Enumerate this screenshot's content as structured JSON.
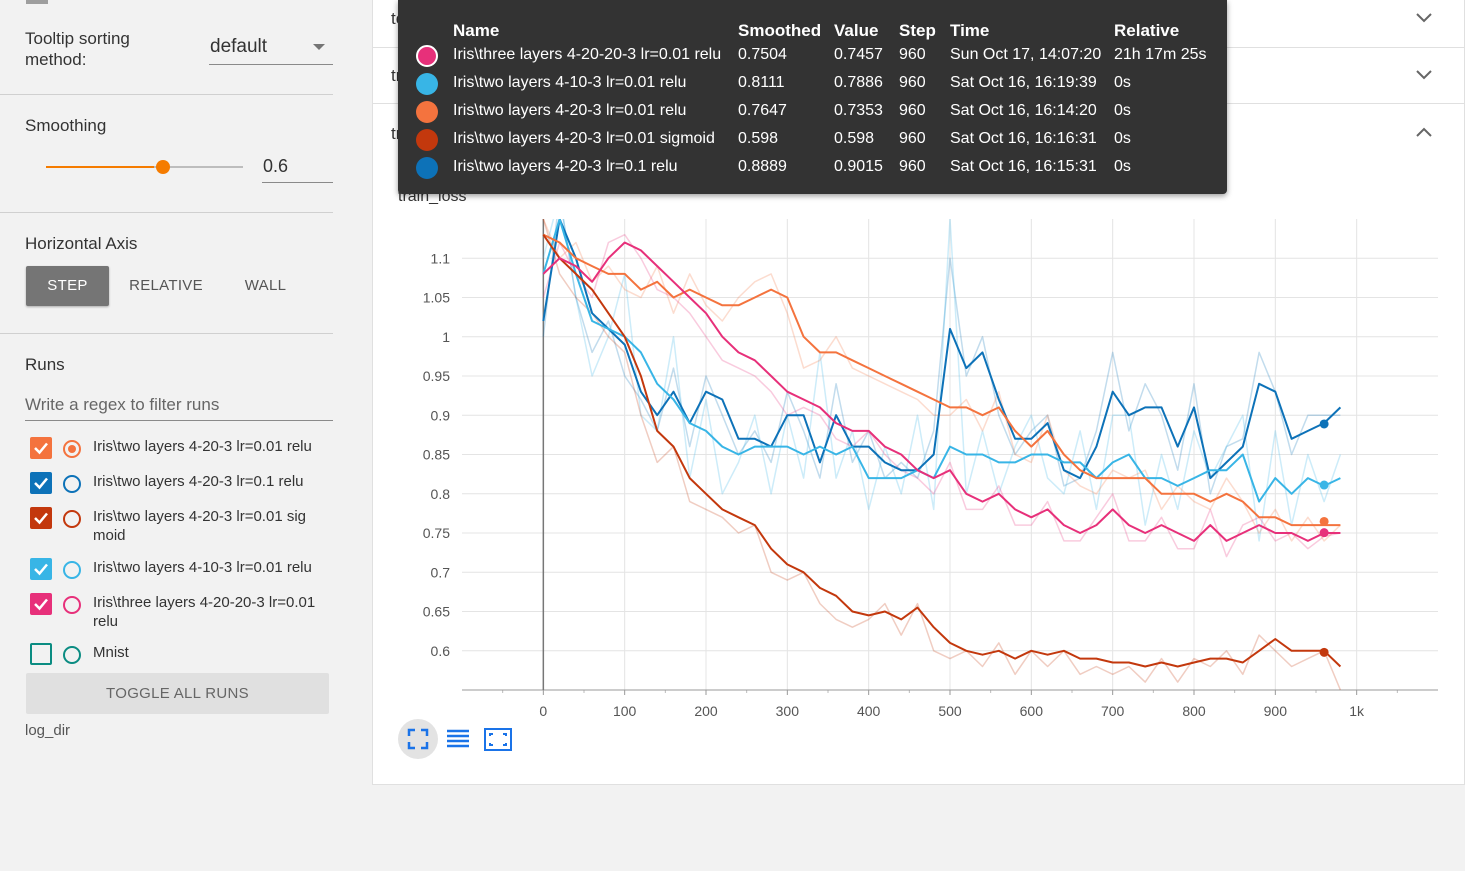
{
  "sidebar": {
    "tooltip_sorting_label": "Tooltip sorting method:",
    "tooltip_sorting_value": "default",
    "smoothing_label": "Smoothing",
    "smoothing_value": "0.6",
    "smoothing_fraction": 0.6,
    "horizontal_axis_label": "Horizontal Axis",
    "axis_options": [
      "STEP",
      "RELATIVE",
      "WALL"
    ],
    "axis_selected": "STEP",
    "runs_label": "Runs",
    "filter_placeholder": "Write a regex to filter runs",
    "runs": [
      {
        "label": "Iris\\two layers 4-20-3 lr=0.01 relu",
        "color": "#f4733e",
        "checked": true,
        "selected": true
      },
      {
        "label": "Iris\\two layers 4-20-3 lr=0.1 relu",
        "color": "#0d72b8",
        "checked": true,
        "selected": false
      },
      {
        "label": "Iris\\two layers 4-20-3 lr=0.01 sig moid",
        "color": "#c3380d",
        "checked": true,
        "selected": false
      },
      {
        "label": "Iris\\two layers 4-10-3 lr=0.01 relu",
        "color": "#38b5e6",
        "checked": true,
        "selected": false
      },
      {
        "label": "Iris\\three layers 4-20-20-3 lr=0.01 relu",
        "color": "#e7307a",
        "checked": true,
        "selected": false
      },
      {
        "label": "Mnist",
        "color": "#0b8c82",
        "checked": false,
        "selected": false
      }
    ],
    "toggle_all_label": "TOGGLE ALL RUNS",
    "log_dir": "log_dir"
  },
  "cards": {
    "test_accuracy": "test_accuracy",
    "train_accuracy": "train_accuracy",
    "train_loss": "train_loss"
  },
  "tooltip": {
    "headers": {
      "name": "Name",
      "smoothed": "Smoothed",
      "value": "Value",
      "step": "Step",
      "time": "Time",
      "relative": "Relative"
    },
    "rows": [
      {
        "color": "#e7307a",
        "name": "Iris\\three layers 4-20-20-3 lr=0.01 relu",
        "smoothed": "0.7504",
        "value": "0.7457",
        "step": "960",
        "time": "Sun Oct 17, 14:07:20",
        "relative": "21h 17m 25s"
      },
      {
        "color": "#38b5e6",
        "name": "Iris\\two layers 4-10-3 lr=0.01 relu",
        "smoothed": "0.8111",
        "value": "0.7886",
        "step": "960",
        "time": "Sat Oct 16, 16:19:39",
        "relative": "0s"
      },
      {
        "color": "#f4733e",
        "name": "Iris\\two layers 4-20-3 lr=0.01 relu",
        "smoothed": "0.7647",
        "value": "0.7353",
        "step": "960",
        "time": "Sat Oct 16, 16:14:20",
        "relative": "0s"
      },
      {
        "color": "#c3380d",
        "name": "Iris\\two layers 4-20-3 lr=0.01 sigmoid",
        "smoothed": "0.598",
        "value": "0.598",
        "step": "960",
        "time": "Sat Oct 16, 16:16:31",
        "relative": "0s"
      },
      {
        "color": "#0d72b8",
        "name": "Iris\\two layers 4-20-3 lr=0.1 relu",
        "smoothed": "0.8889",
        "value": "0.9015",
        "step": "960",
        "time": "Sat Oct 16, 16:15:31",
        "relative": "0s"
      }
    ]
  },
  "chart_data": {
    "type": "line",
    "title": "train_loss",
    "xlim": [
      -100,
      1100
    ],
    "ylim": [
      0.55,
      1.15
    ],
    "x_ticks": [
      0,
      100,
      200,
      300,
      400,
      500,
      600,
      700,
      800,
      900,
      1000
    ],
    "x_tick_labels": [
      "0",
      "100",
      "200",
      "300",
      "400",
      "500",
      "600",
      "700",
      "800",
      "900",
      "1k"
    ],
    "y_ticks": [
      0.6,
      0.65,
      0.7,
      0.75,
      0.8,
      0.85,
      0.9,
      0.95,
      1,
      1.05,
      1.1
    ],
    "y_tick_labels": [
      "0.6",
      "0.65",
      "0.7",
      "0.75",
      "0.8",
      "0.85",
      "0.9",
      "0.95",
      "1",
      "1.05",
      "1.1"
    ],
    "grid": true,
    "series": [
      {
        "name": "Iris\\two layers 4-20-3 lr=0.1 relu",
        "color": "#0d72b8",
        "x": [
          0,
          20,
          40,
          60,
          80,
          100,
          120,
          140,
          160,
          180,
          200,
          220,
          240,
          260,
          280,
          300,
          320,
          340,
          360,
          380,
          400,
          420,
          440,
          460,
          480,
          500,
          520,
          540,
          560,
          580,
          600,
          620,
          640,
          660,
          680,
          700,
          720,
          740,
          760,
          780,
          800,
          820,
          840,
          860,
          880,
          900,
          920,
          940,
          960,
          980
        ],
        "y": [
          1.02,
          1.15,
          1.1,
          1.03,
          1.01,
          0.99,
          0.93,
          0.9,
          0.93,
          0.89,
          0.93,
          0.92,
          0.87,
          0.87,
          0.86,
          0.9,
          0.9,
          0.84,
          0.9,
          0.86,
          0.86,
          0.84,
          0.83,
          0.83,
          0.85,
          1.01,
          0.96,
          0.98,
          0.92,
          0.87,
          0.87,
          0.89,
          0.83,
          0.82,
          0.86,
          0.93,
          0.9,
          0.91,
          0.91,
          0.86,
          0.91,
          0.82,
          0.84,
          0.86,
          0.94,
          0.93,
          0.87,
          0.88,
          0.89,
          0.91
        ],
        "raw": [
          1.0,
          1.18,
          1.05,
          0.98,
          1.02,
          0.95,
          0.92,
          0.88,
          0.96,
          0.86,
          0.95,
          0.9,
          0.85,
          0.88,
          0.84,
          0.93,
          0.88,
          0.82,
          0.94,
          0.84,
          0.88,
          0.82,
          0.84,
          0.82,
          0.88,
          1.1,
          0.95,
          1.0,
          0.9,
          0.85,
          0.88,
          0.9,
          0.81,
          0.82,
          0.88,
          0.98,
          0.88,
          0.94,
          0.9,
          0.83,
          0.94,
          0.8,
          0.86,
          0.87,
          0.98,
          0.93,
          0.85,
          0.9,
          0.9,
          0.9
        ]
      },
      {
        "name": "Iris\\two layers 4-10-3 lr=0.01 relu",
        "color": "#38b5e6",
        "x": [
          0,
          20,
          40,
          60,
          80,
          100,
          120,
          140,
          160,
          180,
          200,
          220,
          240,
          260,
          280,
          300,
          320,
          340,
          360,
          380,
          400,
          420,
          440,
          460,
          480,
          500,
          520,
          540,
          560,
          580,
          600,
          620,
          640,
          660,
          680,
          700,
          720,
          740,
          760,
          780,
          800,
          820,
          840,
          860,
          880,
          900,
          920,
          940,
          960,
          980
        ],
        "y": [
          1.08,
          1.15,
          1.08,
          1.02,
          1.01,
          1.0,
          0.98,
          0.94,
          0.92,
          0.89,
          0.88,
          0.86,
          0.85,
          0.86,
          0.86,
          0.86,
          0.85,
          0.86,
          0.85,
          0.86,
          0.82,
          0.82,
          0.82,
          0.83,
          0.82,
          0.86,
          0.85,
          0.85,
          0.84,
          0.84,
          0.85,
          0.85,
          0.84,
          0.84,
          0.82,
          0.84,
          0.85,
          0.82,
          0.82,
          0.81,
          0.82,
          0.83,
          0.83,
          0.85,
          0.79,
          0.82,
          0.8,
          0.82,
          0.81,
          0.82
        ],
        "raw": [
          1.1,
          1.18,
          1.05,
          0.95,
          1.0,
          1.08,
          0.9,
          0.88,
          1.0,
          0.82,
          0.92,
          0.8,
          0.84,
          0.9,
          0.8,
          0.9,
          0.82,
          0.98,
          0.82,
          0.88,
          0.78,
          0.86,
          0.8,
          0.9,
          0.78,
          1.15,
          0.8,
          0.88,
          0.8,
          0.86,
          0.9,
          0.82,
          0.8,
          0.88,
          0.78,
          0.9,
          0.9,
          0.76,
          0.85,
          0.78,
          0.88,
          0.82,
          0.86,
          0.9,
          0.74,
          0.88,
          0.76,
          0.85,
          0.79,
          0.85
        ]
      },
      {
        "name": "Iris\\two layers 4-20-3 lr=0.01 relu",
        "color": "#f4733e",
        "x": [
          0,
          20,
          40,
          60,
          80,
          100,
          120,
          140,
          160,
          180,
          200,
          220,
          240,
          260,
          280,
          300,
          320,
          340,
          360,
          380,
          400,
          420,
          440,
          460,
          480,
          500,
          520,
          540,
          560,
          580,
          600,
          620,
          640,
          660,
          680,
          700,
          720,
          740,
          760,
          780,
          800,
          820,
          840,
          860,
          880,
          900,
          920,
          940,
          960,
          980
        ],
        "y": [
          1.13,
          1.12,
          1.1,
          1.09,
          1.08,
          1.08,
          1.06,
          1.07,
          1.05,
          1.06,
          1.05,
          1.04,
          1.04,
          1.05,
          1.06,
          1.05,
          1.0,
          0.98,
          0.98,
          0.97,
          0.96,
          0.95,
          0.94,
          0.93,
          0.92,
          0.91,
          0.91,
          0.9,
          0.91,
          0.88,
          0.86,
          0.88,
          0.85,
          0.83,
          0.82,
          0.82,
          0.82,
          0.82,
          0.8,
          0.8,
          0.8,
          0.79,
          0.8,
          0.79,
          0.77,
          0.77,
          0.76,
          0.76,
          0.76,
          0.76
        ],
        "raw": [
          1.15,
          1.1,
          1.12,
          1.07,
          1.09,
          1.06,
          1.05,
          1.09,
          1.03,
          1.08,
          1.04,
          1.02,
          1.05,
          1.07,
          1.08,
          1.03,
          0.96,
          0.97,
          1.0,
          0.96,
          0.95,
          0.94,
          0.93,
          0.92,
          0.9,
          0.9,
          0.92,
          0.88,
          0.93,
          0.85,
          0.84,
          0.9,
          0.83,
          0.81,
          0.8,
          0.83,
          0.82,
          0.83,
          0.78,
          0.81,
          0.79,
          0.78,
          0.82,
          0.79,
          0.75,
          0.78,
          0.74,
          0.77,
          0.74,
          0.76
        ]
      },
      {
        "name": "Iris\\two layers 4-20-3 lr=0.01 sigmoid",
        "color": "#c3380d",
        "x": [
          0,
          20,
          40,
          60,
          80,
          100,
          120,
          140,
          160,
          180,
          200,
          220,
          240,
          260,
          280,
          300,
          320,
          340,
          360,
          380,
          400,
          420,
          440,
          460,
          480,
          500,
          520,
          540,
          560,
          580,
          600,
          620,
          640,
          660,
          680,
          700,
          720,
          740,
          760,
          780,
          800,
          820,
          840,
          860,
          880,
          900,
          920,
          940,
          960,
          980
        ],
        "y": [
          1.13,
          1.1,
          1.08,
          1.06,
          1.03,
          1.0,
          0.95,
          0.88,
          0.86,
          0.82,
          0.8,
          0.78,
          0.77,
          0.76,
          0.73,
          0.71,
          0.7,
          0.68,
          0.67,
          0.65,
          0.645,
          0.65,
          0.64,
          0.655,
          0.63,
          0.61,
          0.6,
          0.595,
          0.6,
          0.59,
          0.6,
          0.595,
          0.6,
          0.59,
          0.59,
          0.585,
          0.585,
          0.58,
          0.585,
          0.58,
          0.585,
          0.59,
          0.59,
          0.585,
          0.6,
          0.615,
          0.6,
          0.6,
          0.6,
          0.58
        ],
        "raw": [
          1.15,
          1.08,
          1.05,
          1.03,
          1.0,
          0.98,
          0.9,
          0.84,
          0.86,
          0.79,
          0.78,
          0.77,
          0.75,
          0.76,
          0.7,
          0.69,
          0.7,
          0.66,
          0.64,
          0.63,
          0.64,
          0.66,
          0.62,
          0.66,
          0.6,
          0.59,
          0.6,
          0.58,
          0.61,
          0.57,
          0.6,
          0.58,
          0.6,
          0.57,
          0.58,
          0.57,
          0.58,
          0.56,
          0.59,
          0.56,
          0.59,
          0.58,
          0.6,
          0.57,
          0.62,
          0.6,
          0.58,
          0.59,
          0.6,
          0.55
        ]
      },
      {
        "name": "Iris\\three layers 4-20-20-3 lr=0.01 relu",
        "color": "#e7307a",
        "x": [
          0,
          20,
          40,
          60,
          80,
          100,
          120,
          140,
          160,
          180,
          200,
          220,
          240,
          260,
          280,
          300,
          320,
          340,
          360,
          380,
          400,
          420,
          440,
          460,
          480,
          500,
          520,
          540,
          560,
          580,
          600,
          620,
          640,
          660,
          680,
          700,
          720,
          740,
          760,
          780,
          800,
          820,
          840,
          860,
          880,
          900,
          920,
          940,
          960,
          980
        ],
        "y": [
          1.08,
          1.1,
          1.09,
          1.07,
          1.1,
          1.12,
          1.11,
          1.09,
          1.07,
          1.05,
          1.03,
          1.0,
          0.98,
          0.97,
          0.95,
          0.93,
          0.92,
          0.91,
          0.89,
          0.88,
          0.88,
          0.86,
          0.85,
          0.83,
          0.82,
          0.83,
          0.8,
          0.79,
          0.8,
          0.78,
          0.77,
          0.78,
          0.76,
          0.75,
          0.76,
          0.78,
          0.76,
          0.75,
          0.76,
          0.75,
          0.74,
          0.76,
          0.74,
          0.75,
          0.76,
          0.75,
          0.75,
          0.74,
          0.75,
          0.75
        ],
        "raw": [
          1.05,
          1.12,
          1.08,
          1.05,
          1.12,
          1.13,
          1.1,
          1.06,
          1.05,
          1.03,
          1.0,
          0.97,
          0.96,
          0.95,
          0.93,
          0.9,
          0.91,
          0.9,
          0.87,
          0.86,
          0.88,
          0.85,
          0.83,
          0.82,
          0.8,
          0.84,
          0.78,
          0.78,
          0.81,
          0.76,
          0.76,
          0.79,
          0.74,
          0.74,
          0.77,
          0.8,
          0.74,
          0.74,
          0.77,
          0.73,
          0.73,
          0.78,
          0.72,
          0.76,
          0.77,
          0.74,
          0.75,
          0.73,
          0.7457,
          0.75
        ]
      }
    ],
    "end_markers": [
      {
        "series": "Iris\\two layers 4-20-3 lr=0.1 relu",
        "x": 960,
        "y": 0.8889
      },
      {
        "series": "Iris\\two layers 4-10-3 lr=0.01 relu",
        "x": 960,
        "y": 0.8111
      },
      {
        "series": "Iris\\two layers 4-20-3 lr=0.01 relu",
        "x": 960,
        "y": 0.7647
      },
      {
        "series": "Iris\\two layers 4-20-3 lr=0.01 sigmoid",
        "x": 960,
        "y": 0.598
      },
      {
        "series": "Iris\\three layers 4-20-20-3 lr=0.01 relu",
        "x": 960,
        "y": 0.7504
      }
    ]
  }
}
